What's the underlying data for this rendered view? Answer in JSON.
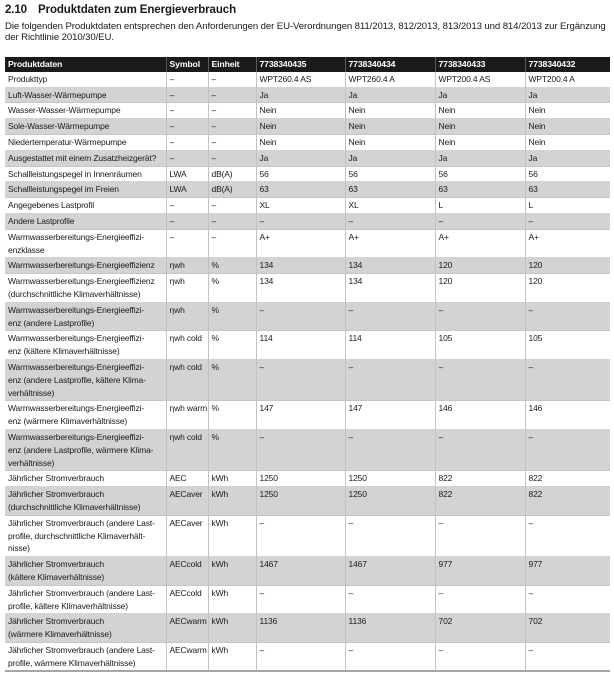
{
  "section": {
    "number": "2.10",
    "title": "Produktdaten zum Energieverbrauch",
    "intro": "Die folgenden Produktdaten entsprechen den Anforderungen der EU-Verordnungen 811/2013, 812/2013, 813/2013 und 814/2013 zur Ergänzung der Richtlinie 2010/30/EU."
  },
  "table": {
    "headers": [
      "Produktdaten",
      "Symbol",
      "Einheit",
      "7738340435",
      "7738340434",
      "7738340433",
      "7738340432"
    ],
    "rows": [
      {
        "label": "Produkttyp",
        "symbol": "–",
        "unit": "–",
        "values": [
          "WPT260.4 AS",
          "WPT260.4 A",
          "WPT200.4 AS",
          "WPT200.4 A"
        ]
      },
      {
        "label": "Luft-Wasser-Wärmepumpe",
        "symbol": "–",
        "unit": "–",
        "values": [
          "Ja",
          "Ja",
          "Ja",
          "Ja"
        ]
      },
      {
        "label": "Wasser-Wasser-Wärmepumpe",
        "symbol": "–",
        "unit": "–",
        "values": [
          "Nein",
          "Nein",
          "Nein",
          "Nein"
        ]
      },
      {
        "label": "Sole-Wasser-Wärmepumpe",
        "symbol": "–",
        "unit": "–",
        "values": [
          "Nein",
          "Nein",
          "Nein",
          "Nein"
        ]
      },
      {
        "label": "Niedertemperatur-Wärmepumpe",
        "symbol": "–",
        "unit": "–",
        "values": [
          "Nein",
          "Nein",
          "Nein",
          "Nein"
        ]
      },
      {
        "label": "Ausgestattet mit einem Zusatzheizgerät?",
        "symbol": "–",
        "unit": "–",
        "values": [
          "Ja",
          "Ja",
          "Ja",
          "Ja"
        ]
      },
      {
        "label": "Schallleistungspegel in Innenräumen",
        "symbol": "LWA",
        "unit": "dB(A)",
        "values": [
          "56",
          "56",
          "56",
          "56"
        ]
      },
      {
        "label": "Schallleistungspegel im Freien",
        "symbol": "LWA",
        "unit": "dB(A)",
        "values": [
          "63",
          "63",
          "63",
          "63"
        ]
      },
      {
        "label": "Angegebenes Lastprofil",
        "symbol": "–",
        "unit": "–",
        "values": [
          "XL",
          "XL",
          "L",
          "L"
        ]
      },
      {
        "label": "Andere Lastprofile",
        "symbol": "–",
        "unit": "–",
        "values": [
          "–",
          "–",
          "–",
          "–"
        ]
      },
      {
        "label": "Warmwasserbereitungs-Energieeffizi-\nenzklasse",
        "symbol": "–",
        "unit": "–",
        "values": [
          "A+",
          "A+",
          "A+",
          "A+"
        ]
      },
      {
        "label": "Warmwasserbereitungs-Energieeffizienz",
        "symbol": "ηwh",
        "unit": "%",
        "values": [
          "134",
          "134",
          "120",
          "120"
        ]
      },
      {
        "label": "Warmwasserbereitungs-Energieeffizienz\n(durchschnittliche Klimaverhältnisse)",
        "symbol": "ηwh",
        "unit": "%",
        "values": [
          "134",
          "134",
          "120",
          "120"
        ]
      },
      {
        "label": "Warmwasserbereitungs-Energieeffizi-\nenz (andere Lastprofile)",
        "symbol": "ηwh",
        "unit": "%",
        "values": [
          "–",
          "–",
          "–",
          "–"
        ]
      },
      {
        "label": "Warmwasserbereitungs-Energieeffizi-\nenz (kältere Klimaverhältnisse)",
        "symbol": "ηwh cold",
        "unit": "%",
        "values": [
          "114",
          "114",
          "105",
          "105"
        ]
      },
      {
        "label": "Warmwasserbereitungs-Energieeffizi-\nenz (andere Lastprofile, kältere Klima-\nverhältnisse)",
        "symbol": "ηwh cold",
        "unit": "%",
        "values": [
          "–",
          "–",
          "–",
          "–"
        ]
      },
      {
        "label": "Warmwasserbereitungs-Energieeffizi-\nenz (wärmere Klimaverhältnisse)",
        "symbol": "ηwh warm",
        "unit": "%",
        "values": [
          "147",
          "147",
          "146",
          "146"
        ]
      },
      {
        "label": "Warmwasserbereitungs-Energieeffizi-\nenz (andere Lastprofile, wärmere Klima-\nverhältnisse)",
        "symbol": "ηwh cold",
        "unit": "%",
        "values": [
          "–",
          "–",
          "–",
          "–"
        ]
      },
      {
        "label": "Jährlicher Stromverbrauch",
        "symbol": "AEC",
        "unit": "kWh",
        "values": [
          "1250",
          "1250",
          "822",
          "822"
        ]
      },
      {
        "label": "Jährlicher Stromverbrauch\n(durchschnittliche Klimaverhältnisse)",
        "symbol": "AECaver",
        "unit": "kWh",
        "values": [
          "1250",
          "1250",
          "822",
          "822"
        ]
      },
      {
        "label": "Jährlicher Stromverbrauch (andere Last-\nprofile, durchschnittliche Klimaverhält-\nnisse)",
        "symbol": "AECaver",
        "unit": "kWh",
        "values": [
          "–",
          "–",
          "–",
          "–"
        ]
      },
      {
        "label": "Jährlicher Stromverbrauch\n(kältere Klimaverhältnisse)",
        "symbol": "AECcold",
        "unit": "kWh",
        "values": [
          "1467",
          "1467",
          "977",
          "977"
        ]
      },
      {
        "label": "Jährlicher Stromverbrauch (andere Last-\nprofile, kältere Klimaverhältnisse)",
        "symbol": "AECcold",
        "unit": "kWh",
        "values": [
          "–",
          "–",
          "–",
          "–"
        ]
      },
      {
        "label": "Jährlicher Stromverbrauch\n(wärmere Klimaverhältnisse)",
        "symbol": "AECwarm",
        "unit": "kWh",
        "values": [
          "1136",
          "1136",
          "702",
          "702"
        ]
      },
      {
        "label": "Jährlicher Stromverbrauch (andere Last-\nprofile, wärmere Klimaverhältnisse)",
        "symbol": "AECwarm",
        "unit": "kWh",
        "values": [
          "–",
          "–",
          "–",
          "–"
        ]
      }
    ]
  },
  "colors": {
    "header_bg": "#1a1a1a",
    "alt_row_bg": "#d3d3d3",
    "text": "#1a1a1a"
  }
}
